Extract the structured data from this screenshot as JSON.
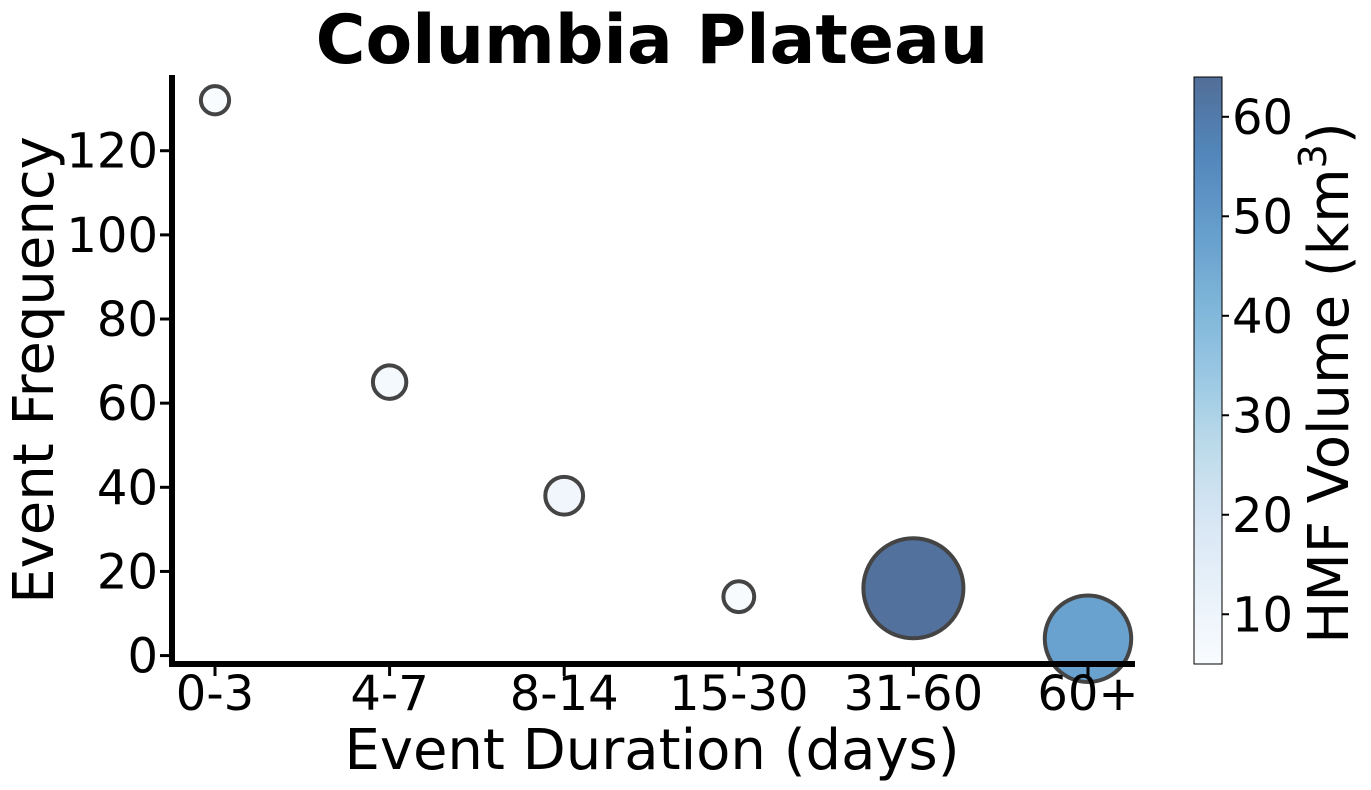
{
  "chart_data": {
    "type": "scatter",
    "title": "Columbia Plateau",
    "xlabel": "Event Duration (days)",
    "ylabel": "Event Frequency",
    "categories": [
      "0-3",
      "4-7",
      "8-14",
      "15-30",
      "31-60",
      "60+"
    ],
    "series": [
      {
        "frequency": [
          132,
          65,
          38,
          14,
          16,
          4
        ],
        "hmf_volume_km3": [
          5,
          7,
          9,
          6,
          63,
          47
        ]
      }
    ],
    "ylim": [
      -2,
      138
    ],
    "yticks": [
      "0",
      "20",
      "40",
      "60",
      "80",
      "100",
      "120"
    ],
    "colorbar": {
      "label": "HMF Volume (km",
      "label_sup": "3",
      "label_end": ")",
      "range": [
        5,
        64
      ],
      "ticks": [
        "10",
        "20",
        "30",
        "40",
        "50",
        "60"
      ],
      "colors": [
        "#f7fbff",
        "#deebf7",
        "#c6dbef",
        "#9ecae1",
        "#6baed6",
        "#4292c6",
        "#2171b5",
        "#08519c",
        "#08306b"
      ],
      "alpha": 0.7
    },
    "grid": false,
    "legend": "none",
    "marker_edge_color": "#444444"
  }
}
